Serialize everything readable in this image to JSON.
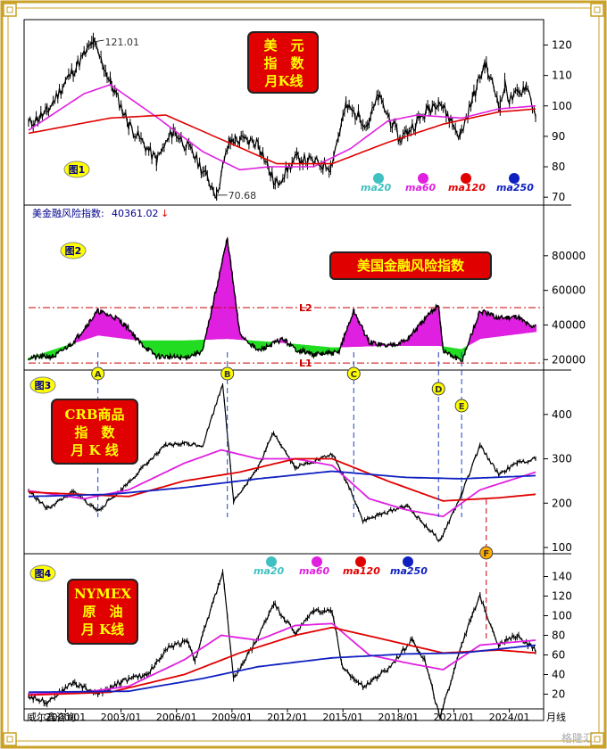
{
  "colors": {
    "ma20": "#40c0c0",
    "ma60": "#e020e0",
    "ma120": "#e00000",
    "ma250": "#1020c0",
    "price": "#000000",
    "pos_fill": "#e020e0",
    "neg_fill": "#22dd22",
    "ref": "#cc0000",
    "marker": "#2040c0"
  },
  "watermark": "威尔鑫咨询",
  "footer_unit": "月线",
  "logo_text": "格隆汇",
  "legend": {
    "ma20": "ma20",
    "ma60": "ma60",
    "ma120": "ma120",
    "ma250": "ma250"
  },
  "panels": {
    "p1": {
      "label": "图1",
      "title": [
        "美　元",
        "指　数",
        "月K线"
      ]
    },
    "p2": {
      "label": "图2",
      "title": "美国金融风险指数",
      "header_name": "美金融风险指数:",
      "header_value": "40361.02",
      "header_arrow": "↓",
      "L1": "L1",
      "L2": "L2"
    },
    "p3": {
      "label": "图3",
      "title": [
        "CRB商品",
        "指　数",
        "月 K 线"
      ]
    },
    "p4": {
      "label": "图4",
      "title": [
        "NYMEX",
        "原　油",
        "月 K线"
      ]
    }
  },
  "markers": [
    "A",
    "B",
    "C",
    "D",
    "E",
    "F"
  ],
  "chart_data": [
    {
      "type": "line",
      "name": "美元指数 月K线",
      "ylim": [
        68,
        126
      ],
      "yticks": [
        70,
        80,
        90,
        100,
        110,
        120
      ],
      "annotations": [
        {
          "text": "121.01",
          "value": 121.01,
          "date": "2001/07"
        },
        {
          "text": "70.68",
          "value": 70.68,
          "date": "2008/03"
        }
      ],
      "series": [
        {
          "name": "price",
          "points": [
            [
              "1998/01",
              94
            ],
            [
              "1999/01",
              98
            ],
            [
              "2000/01",
              108
            ],
            [
              "2001/07",
              121
            ],
            [
              "2002/06",
              108
            ],
            [
              "2003/06",
              94
            ],
            [
              "2004/12",
              82
            ],
            [
              "2005/11",
              92
            ],
            [
              "2006/12",
              84
            ],
            [
              "2008/03",
              71
            ],
            [
              "2008/11",
              88
            ],
            [
              "2009/03",
              89
            ],
            [
              "2010/06",
              88
            ],
            [
              "2011/05",
              74
            ],
            [
              "2012/07",
              83
            ],
            [
              "2014/05",
              80
            ],
            [
              "2015/03",
              100
            ],
            [
              "2016/05",
              94
            ],
            [
              "2016/12",
              103
            ],
            [
              "2018/02",
              89
            ],
            [
              "2019/09",
              99
            ],
            [
              "2020/03",
              102
            ],
            [
              "2021/05",
              90
            ],
            [
              "2022/09",
              114
            ],
            [
              "2023/07",
              100
            ],
            [
              "2023/10",
              107
            ],
            [
              "2024/01",
              102
            ],
            [
              "2024/07",
              104
            ],
            [
              "2024/12",
              107
            ],
            [
              "2025/06",
              97
            ]
          ]
        },
        {
          "name": "ma60",
          "points": [
            [
              "1998/01",
              92
            ],
            [
              "2001/01",
              104
            ],
            [
              "2002/06",
              107
            ],
            [
              "2005/01",
              96
            ],
            [
              "2007/06",
              85
            ],
            [
              "2009/06",
              79
            ],
            [
              "2011/01",
              80
            ],
            [
              "2013/06",
              80
            ],
            [
              "2015/06",
              86
            ],
            [
              "2017/06",
              95
            ],
            [
              "2019/01",
              97
            ],
            [
              "2021/06",
              96
            ],
            [
              "2023/06",
              99
            ],
            [
              "2025/06",
              100
            ]
          ]
        },
        {
          "name": "ma120",
          "points": [
            [
              "1998/01",
              91
            ],
            [
              "2002/06",
              96
            ],
            [
              "2005/06",
              97
            ],
            [
              "2008/06",
              89
            ],
            [
              "2011/06",
              81
            ],
            [
              "2014/06",
              81
            ],
            [
              "2017/06",
              88
            ],
            [
              "2020/06",
              94
            ],
            [
              "2023/06",
              98
            ],
            [
              "2025/06",
              99
            ]
          ]
        }
      ]
    },
    {
      "type": "area",
      "name": "美国金融风险指数",
      "ylim": [
        15000,
        100000
      ],
      "yticks": [
        20000,
        40000,
        60000,
        80000
      ],
      "ref_lines": [
        {
          "name": "L2",
          "value": 50000
        },
        {
          "name": "L1",
          "value": 18000
        }
      ],
      "series": [
        {
          "name": "index",
          "points": [
            [
              "1998/01",
              21000
            ],
            [
              "1999/06",
              22000
            ],
            [
              "2000/06",
              30000
            ],
            [
              "2001/10",
              48000
            ],
            [
              "2002/10",
              44000
            ],
            [
              "2003/06",
              38000
            ],
            [
              "2004/01",
              30000
            ],
            [
              "2004/12",
              22000
            ],
            [
              "2006/06",
              21000
            ],
            [
              "2007/06",
              25000
            ],
            [
              "2008/10",
              90000
            ],
            [
              "2009/06",
              35000
            ],
            [
              "2010/06",
              25000
            ],
            [
              "2011/10",
              32000
            ],
            [
              "2012/06",
              26000
            ],
            [
              "2013/06",
              23000
            ],
            [
              "2014/10",
              24000
            ],
            [
              "2015/08",
              48000
            ],
            [
              "2016/06",
              30000
            ],
            [
              "2017/06",
              28000
            ],
            [
              "2018/06",
              31000
            ],
            [
              "2020/03",
              52000
            ],
            [
              "2020/06",
              25000
            ],
            [
              "2021/06",
              19000
            ],
            [
              "2022/06",
              48000
            ],
            [
              "2023/06",
              44000
            ],
            [
              "2024/06",
              45000
            ],
            [
              "2025/03",
              39000
            ],
            [
              "2025/06",
              40361
            ]
          ]
        },
        {
          "name": "reference",
          "points": [
            [
              "1998/01",
              21000
            ],
            [
              "2001/10",
              34000
            ],
            [
              "2004/01",
              31000
            ],
            [
              "2006/06",
              31000
            ],
            [
              "2008/10",
              32000
            ],
            [
              "2011/06",
              30000
            ],
            [
              "2014/06",
              27000
            ],
            [
              "2017/06",
              28000
            ],
            [
              "2020/03",
              28000
            ],
            [
              "2021/06",
              26000
            ],
            [
              "2022/06",
              32000
            ],
            [
              "2025/06",
              36000
            ]
          ]
        }
      ]
    },
    {
      "type": "line",
      "name": "CRB商品指数 月K线",
      "ylim": [
        90,
        480
      ],
      "yticks": [
        100,
        200,
        300,
        400
      ],
      "series": [
        {
          "name": "price",
          "points": [
            [
              "1998/01",
              228
            ],
            [
              "1999/01",
              188
            ],
            [
              "2000/06",
              225
            ],
            [
              "2001/10",
              183
            ],
            [
              "2003/01",
              230
            ],
            [
              "2004/06",
              290
            ],
            [
              "2005/06",
              330
            ],
            [
              "2006/06",
              335
            ],
            [
              "2007/06",
              330
            ],
            [
              "2008/07",
              470
            ],
            [
              "2009/02",
              205
            ],
            [
              "2010/06",
              280
            ],
            [
              "2011/04",
              360
            ],
            [
              "2012/06",
              280
            ],
            [
              "2013/06",
              295
            ],
            [
              "2014/06",
              310
            ],
            [
              "2015/06",
              230
            ],
            [
              "2016/02",
              160
            ],
            [
              "2017/06",
              180
            ],
            [
              "2018/06",
              195
            ],
            [
              "2020/04",
              115
            ],
            [
              "2021/06",
              220
            ],
            [
              "2022/06",
              330
            ],
            [
              "2023/06",
              265
            ],
            [
              "2024/06",
              290
            ],
            [
              "2025/06",
              300
            ]
          ]
        },
        {
          "name": "ma60",
          "points": [
            [
              "1998/01",
              228
            ],
            [
              "2001/01",
              210
            ],
            [
              "2003/06",
              230
            ],
            [
              "2006/06",
              290
            ],
            [
              "2008/06",
              320
            ],
            [
              "2010/06",
              300
            ],
            [
              "2012/06",
              300
            ],
            [
              "2014/06",
              285
            ],
            [
              "2016/06",
              210
            ],
            [
              "2018/06",
              185
            ],
            [
              "2020/06",
              170
            ],
            [
              "2022/06",
              230
            ],
            [
              "2025/06",
              270
            ]
          ]
        },
        {
          "name": "ma120",
          "points": [
            [
              "1998/01",
              225
            ],
            [
              "2003/06",
              215
            ],
            [
              "2006/06",
              250
            ],
            [
              "2009/06",
              270
            ],
            [
              "2012/06",
              300
            ],
            [
              "2014/06",
              300
            ],
            [
              "2017/06",
              250
            ],
            [
              "2020/06",
              205
            ],
            [
              "2023/06",
              212
            ],
            [
              "2025/06",
              220
            ]
          ]
        },
        {
          "name": "ma250",
          "points": [
            [
              "1998/01",
              215
            ],
            [
              "2002/06",
              220
            ],
            [
              "2006/06",
              235
            ],
            [
              "2010/06",
              255
            ],
            [
              "2014/06",
              272
            ],
            [
              "2018/06",
              258
            ],
            [
              "2021/06",
              255
            ],
            [
              "2025/06",
              262
            ]
          ]
        }
      ]
    },
    {
      "type": "line",
      "name": "NYMEX原油 月K线",
      "ylim": [
        5,
        155
      ],
      "yticks": [
        20,
        40,
        60,
        80,
        100,
        120,
        140
      ],
      "series": [
        {
          "name": "price",
          "points": [
            [
              "1998/01",
              18
            ],
            [
              "1999/01",
              12
            ],
            [
              "2000/06",
              32
            ],
            [
              "2001/10",
              20
            ],
            [
              "2003/01",
              33
            ],
            [
              "2004/06",
              40
            ],
            [
              "2005/08",
              68
            ],
            [
              "2006/08",
              75
            ],
            [
              "2007/01",
              55
            ],
            [
              "2008/07",
              145
            ],
            [
              "2009/02",
              35
            ],
            [
              "2010/06",
              78
            ],
            [
              "2011/04",
              113
            ],
            [
              "2012/06",
              82
            ],
            [
              "2013/06",
              105
            ],
            [
              "2014/06",
              105
            ],
            [
              "2015/01",
              45
            ],
            [
              "2016/02",
              28
            ],
            [
              "2017/06",
              45
            ],
            [
              "2018/10",
              76
            ],
            [
              "2019/06",
              55
            ],
            [
              "2020/04",
              -5
            ],
            [
              "2021/06",
              72
            ],
            [
              "2022/06",
              120
            ],
            [
              "2023/06",
              70
            ],
            [
              "2024/06",
              80
            ],
            [
              "2025/06",
              65
            ]
          ]
        },
        {
          "name": "ma60",
          "points": [
            [
              "1998/01",
              20
            ],
            [
              "2001/01",
              22
            ],
            [
              "2003/06",
              28
            ],
            [
              "2006/06",
              55
            ],
            [
              "2008/06",
              80
            ],
            [
              "2010/06",
              75
            ],
            [
              "2012/06",
              90
            ],
            [
              "2014/06",
              92
            ],
            [
              "2016/06",
              60
            ],
            [
              "2018/06",
              52
            ],
            [
              "2020/06",
              45
            ],
            [
              "2022/06",
              70
            ],
            [
              "2025/06",
              75
            ]
          ]
        },
        {
          "name": "ma120",
          "points": [
            [
              "1998/01",
              19
            ],
            [
              "2002/06",
              22
            ],
            [
              "2006/06",
              40
            ],
            [
              "2009/06",
              62
            ],
            [
              "2012/06",
              80
            ],
            [
              "2014/06",
              88
            ],
            [
              "2017/06",
              75
            ],
            [
              "2020/06",
              62
            ],
            [
              "2023/06",
              65
            ],
            [
              "2025/06",
              62
            ]
          ]
        },
        {
          "name": "ma250",
          "points": [
            [
              "1998/01",
              22
            ],
            [
              "2003/06",
              23
            ],
            [
              "2007/06",
              36
            ],
            [
              "2010/06",
              48
            ],
            [
              "2014/06",
              57
            ],
            [
              "2018/06",
              61
            ],
            [
              "2021/06",
              62
            ],
            [
              "2025/06",
              70
            ]
          ]
        }
      ]
    }
  ],
  "x_ticks": [
    "2000/01",
    "2003/01",
    "2006/01",
    "2009/01",
    "2012/01",
    "2015/01",
    "2018/01",
    "2021/01",
    "2024/01"
  ],
  "x_range": [
    "1998/01",
    "2025/06"
  ],
  "vlines": [
    {
      "label": "A",
      "date": "2001/10",
      "top_panel": 2,
      "bottom_panel": 3
    },
    {
      "label": "B",
      "date": "2008/10",
      "top_panel": 2,
      "bottom_panel": 3
    },
    {
      "label": "C",
      "date": "2015/08",
      "top_panel": 2,
      "bottom_panel": 3
    },
    {
      "label": "D",
      "date": "2020/03",
      "top_panel": 2,
      "bottom_panel": 3
    },
    {
      "label": "E",
      "date": "2021/06",
      "top_panel": 2,
      "bottom_panel": 3
    },
    {
      "label": "F",
      "date": "2022/10",
      "top_panel": 3,
      "bottom_panel": 4
    }
  ]
}
